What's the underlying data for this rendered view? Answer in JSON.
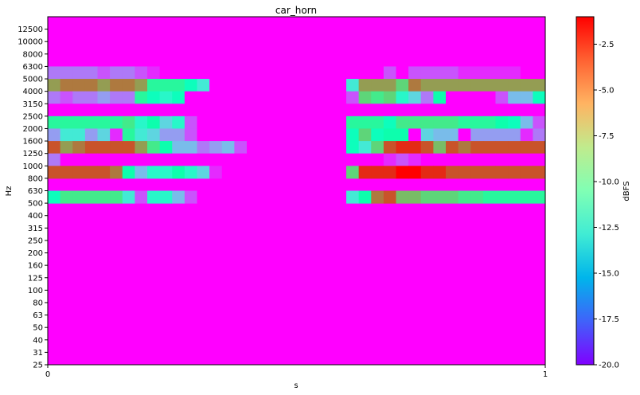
{
  "chart_data": {
    "type": "heatmap",
    "title": "car_horn",
    "xlabel": "s",
    "ylabel": "Hz",
    "xlim": [
      0,
      1
    ],
    "x_ticks": [
      "0",
      "1"
    ],
    "y_ticks": [
      "25",
      "31",
      "40",
      "50",
      "63",
      "80",
      "100",
      "125",
      "160",
      "200",
      "250",
      "315",
      "400",
      "500",
      "630",
      "800",
      "1000",
      "1250",
      "1600",
      "2000",
      "2500",
      "3150",
      "4000",
      "5000",
      "6300",
      "8000",
      "10000",
      "12500"
    ],
    "n_time_frames": 40,
    "colorbar": {
      "label": "dBFS",
      "range": [
        -20,
        -1
      ],
      "ticks": [
        "-20.0",
        "-17.5",
        "-15.0",
        "-12.5",
        "-10.0",
        "-7.5",
        "-5.0",
        "-2.5"
      ],
      "tick_values": [
        -20,
        -17.5,
        -15,
        -12.5,
        -10,
        -7.5,
        -5,
        -2.5
      ],
      "colormap": "rainbow"
    },
    "background_value": -20,
    "bands": [
      {
        "freq": "5000",
        "values": [
          -17,
          -17,
          -17,
          -17,
          -18,
          -17,
          -17,
          -18,
          -19,
          -20,
          -20,
          -20,
          -20,
          -20,
          -20,
          -20,
          -20,
          -20,
          -20,
          -20,
          -20,
          -20,
          -20,
          -20,
          -20,
          -20,
          -20,
          -18,
          -20,
          -18,
          -18,
          -18,
          -18,
          -19,
          -19,
          -19,
          -19,
          -19,
          -20,
          -20
        ]
      },
      {
        "freq": "4000",
        "values": [
          -5,
          -4,
          -4,
          -4,
          -5,
          -4,
          -4,
          -5,
          -9,
          -9,
          -9,
          -11,
          -13,
          -20,
          -20,
          -20,
          -20,
          -20,
          -20,
          -20,
          -20,
          -20,
          -20,
          -20,
          -13,
          -5,
          -5,
          -5,
          -7,
          -4,
          -5,
          -5,
          -5,
          -5,
          -5,
          -5,
          -5,
          -5,
          -5,
          -5
        ]
      },
      {
        "freq": "3150",
        "values": [
          -17,
          -18,
          -17,
          -17,
          -16,
          -17,
          -17,
          -9,
          -11,
          -12,
          -11,
          -20,
          -20,
          -20,
          -20,
          -20,
          -20,
          -20,
          -20,
          -20,
          -20,
          -20,
          -20,
          -20,
          -18,
          -7,
          -8,
          -7,
          -12,
          -14,
          -17,
          -10,
          -20,
          -20,
          -20,
          -20,
          -18,
          -15,
          -15,
          -11
        ]
      },
      {
        "freq": "2500",
        "values": [
          -20,
          -20,
          -20,
          -20,
          -20,
          -20,
          -20,
          -20,
          -20,
          -20,
          -20,
          -20,
          -20,
          -20,
          -20,
          -20,
          -20,
          -20,
          -20,
          -20,
          -20,
          -20,
          -20,
          -20,
          -20,
          -20,
          -20,
          -20,
          -20,
          -20,
          -20,
          -20,
          -20,
          -20,
          -20,
          -20,
          -20,
          -20,
          -20,
          -20
        ]
      },
      {
        "freq": "2000",
        "values": [
          -9,
          -9,
          -9,
          -9,
          -9,
          -9,
          -8,
          -12,
          -10,
          -14,
          -12,
          -18,
          -20,
          -20,
          -20,
          -20,
          -20,
          -20,
          -20,
          -20,
          -20,
          -20,
          -20,
          -20,
          -9,
          -9,
          -9,
          -11,
          -8,
          -8,
          -8,
          -8,
          -8,
          -9,
          -9,
          -9,
          -10,
          -11,
          -15,
          -18
        ]
      },
      {
        "freq": "1600",
        "values": [
          -16,
          -13,
          -13,
          -16,
          -14,
          -19,
          -9,
          -13,
          -14,
          -16,
          -16,
          -18,
          -20,
          -20,
          -20,
          -20,
          -20,
          -20,
          -20,
          -20,
          -20,
          -20,
          -20,
          -20,
          -11,
          -7,
          -11,
          -10,
          -10,
          -20,
          -14,
          -15,
          -15,
          -20,
          -16,
          -16,
          -16,
          -16,
          -19,
          -17
        ]
      },
      {
        "freq": "1250",
        "values": [
          -3,
          -5,
          -4,
          -3,
          -3,
          -3,
          -3,
          -5,
          -8,
          -10,
          -15,
          -15,
          -17,
          -16,
          -15,
          -18,
          -20,
          -20,
          -20,
          -20,
          -20,
          -20,
          -20,
          -20,
          -11,
          -13,
          -7,
          -3,
          -2,
          -2,
          -3,
          -6,
          -3,
          -4,
          -3,
          -3,
          -3,
          -3,
          -3,
          -3
        ]
      },
      {
        "freq": "1000",
        "values": [
          -17,
          -20,
          -20,
          -20,
          -20,
          -20,
          -20,
          -20,
          -20,
          -20,
          -20,
          -20,
          -20,
          -20,
          -20,
          -20,
          -20,
          -20,
          -20,
          -20,
          -20,
          -20,
          -20,
          -20,
          -20,
          -20,
          -20,
          -19,
          -18,
          -19,
          -20,
          -20,
          -20,
          -20,
          -20,
          -20,
          -20,
          -20,
          -20,
          -20
        ]
      },
      {
        "freq": "800",
        "values": [
          -3,
          -3,
          -3,
          -3,
          -3,
          -4,
          -10,
          -15,
          -12,
          -12,
          -10,
          -12,
          -14,
          -19,
          -20,
          -20,
          -20,
          -20,
          -20,
          -20,
          -20,
          -20,
          -20,
          -20,
          -7,
          -2,
          -2,
          -2,
          -1,
          -1,
          -2,
          -2,
          -3,
          -3,
          -3,
          -3,
          -3,
          -3,
          -3,
          -3
        ]
      },
      {
        "freq": "500",
        "values": [
          -11,
          -8,
          -8,
          -8,
          -8,
          -8,
          -13,
          -18,
          -12,
          -12,
          -15,
          -18,
          -20,
          -20,
          -20,
          -20,
          -20,
          -20,
          -20,
          -20,
          -20,
          -20,
          -20,
          -20,
          -13,
          -10,
          -4,
          -3,
          -6,
          -6,
          -7,
          -7,
          -7,
          -8,
          -8,
          -9,
          -9,
          -9,
          -9,
          -9
        ]
      }
    ]
  }
}
